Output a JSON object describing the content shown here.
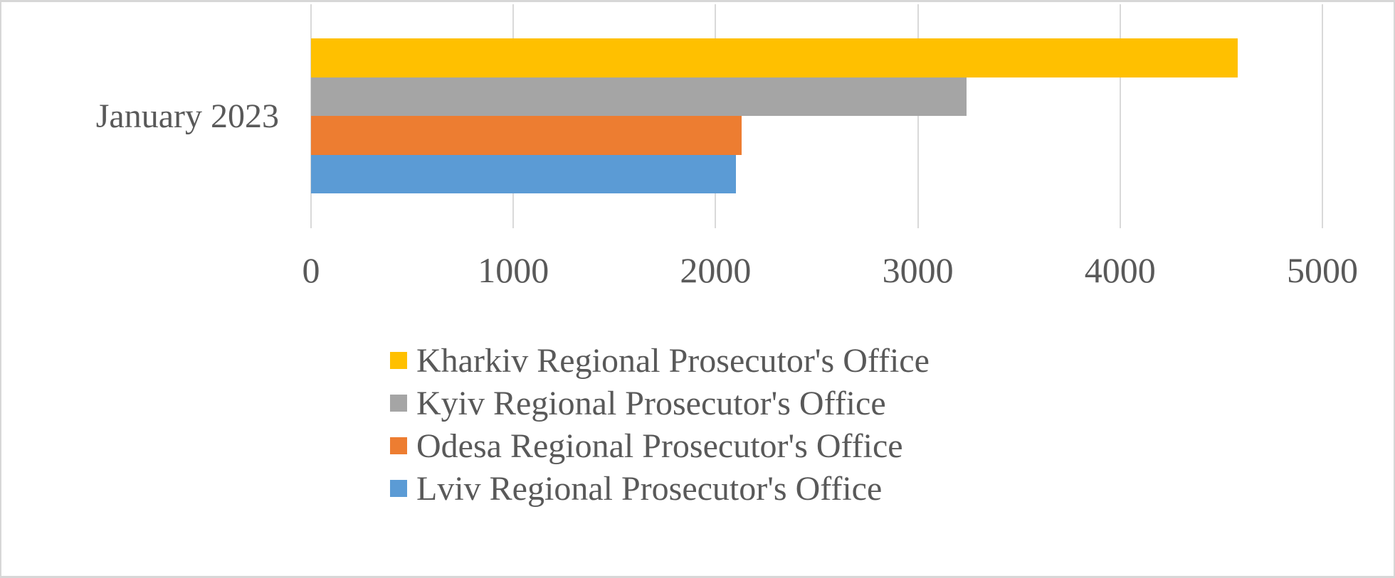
{
  "chart_data": {
    "type": "bar",
    "orientation": "horizontal",
    "title": "",
    "xlabel": "",
    "ylabel": "",
    "categories": [
      "January 2023"
    ],
    "series": [
      {
        "name": "Kharkiv Regional Prosecutor's Office",
        "value": 4580,
        "color": "#FFC000"
      },
      {
        "name": "Kyiv Regional Prosecutor's Office",
        "value": 3240,
        "color": "#A5A5A5"
      },
      {
        "name": "Odesa Regional Prosecutor's Office",
        "value": 2130,
        "color": "#ED7D31"
      },
      {
        "name": "Lviv Regional Prosecutor's Office",
        "value": 2100,
        "color": "#5B9BD5"
      }
    ],
    "xlim": [
      0,
      5000
    ],
    "x_ticks": [
      0,
      1000,
      2000,
      3000,
      4000,
      5000
    ],
    "grid": "vertical-gridlines-on",
    "legend_position": "bottom-left-column",
    "colors": {
      "text": "#595959",
      "gridline": "#D9D9D9",
      "background": "#FFFFFF",
      "frame_border": "#D7D7D7"
    }
  }
}
